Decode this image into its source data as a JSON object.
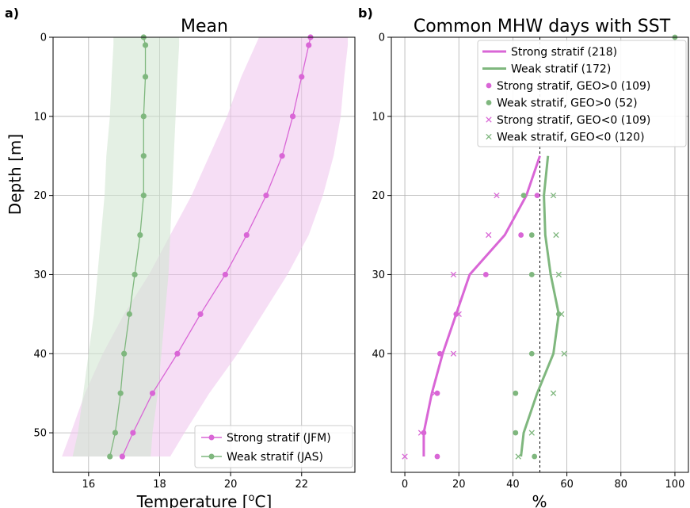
{
  "chart_data": [
    {
      "panel_label": "a)",
      "type": "line",
      "title": "Mean",
      "xlabel": "Temperature [°C]",
      "xlabel_main": "Temperature [",
      "xlabel_sup": "o",
      "xlabel_tail": "C]",
      "ylabel": "Depth [m]",
      "xlim": [
        15,
        23.5
      ],
      "ylim": [
        55,
        0
      ],
      "xticks": [
        16,
        18,
        20,
        22
      ],
      "yticks": [
        0,
        10,
        20,
        30,
        40,
        50
      ],
      "grid": true,
      "legend_position": "lower-right",
      "series": [
        {
          "name": "Strong stratif (JFM)",
          "color": "#d966d6",
          "depth": [
            0,
            1,
            5,
            10,
            15,
            20,
            25,
            30,
            35,
            40,
            45,
            50,
            53
          ],
          "mean": [
            22.25,
            22.2,
            22.0,
            21.75,
            21.45,
            21.0,
            20.45,
            19.85,
            19.15,
            18.5,
            17.8,
            17.25,
            16.95
          ],
          "lower": [
            20.8,
            20.7,
            20.3,
            19.9,
            19.4,
            18.9,
            18.3,
            17.7,
            17.0,
            16.4,
            15.9,
            15.5,
            15.25
          ],
          "upper": [
            23.3,
            23.3,
            23.2,
            23.1,
            22.9,
            22.6,
            22.2,
            21.6,
            20.9,
            20.2,
            19.4,
            18.7,
            18.3
          ],
          "band_color": "#f0c8ef"
        },
        {
          "name": "Weak stratif (JAS)",
          "color": "#7fb77e",
          "depth": [
            0,
            1,
            5,
            10,
            15,
            20,
            25,
            30,
            35,
            40,
            45,
            50,
            53
          ],
          "mean": [
            17.55,
            17.6,
            17.6,
            17.55,
            17.55,
            17.55,
            17.45,
            17.3,
            17.15,
            17.0,
            16.9,
            16.75,
            16.6
          ],
          "lower": [
            16.7,
            16.7,
            16.65,
            16.6,
            16.5,
            16.45,
            16.35,
            16.25,
            16.15,
            16.0,
            15.85,
            15.7,
            15.55
          ],
          "upper": [
            18.55,
            18.55,
            18.5,
            18.45,
            18.4,
            18.35,
            18.3,
            18.25,
            18.15,
            18.05,
            17.95,
            17.8,
            17.75
          ],
          "band_color": "#d2e6d2"
        }
      ]
    },
    {
      "panel_label": "b)",
      "type": "line",
      "title": "Common MHW days with SST",
      "xlabel": "%",
      "ylabel": "",
      "xlim": [
        -5,
        105
      ],
      "ylim": [
        55,
        0
      ],
      "xticks": [
        0,
        20,
        40,
        60,
        80,
        100
      ],
      "yticks": [
        0,
        10,
        20,
        30,
        40
      ],
      "grid": true,
      "reference_line_x": 50,
      "legend_position": "upper-right",
      "lines": [
        {
          "name": "Strong stratif (218)",
          "color": "#d966d6",
          "depth": [
            15,
            20,
            25,
            30,
            35,
            40,
            45,
            50,
            53
          ],
          "x": [
            50,
            45,
            37,
            24,
            19,
            14,
            10,
            7,
            7
          ]
        },
        {
          "name": "Weak stratif (172)",
          "color": "#7fb77e",
          "depth": [
            15,
            20,
            25,
            30,
            35,
            40,
            45,
            50,
            53
          ],
          "x": [
            53,
            51.5,
            52,
            54,
            57,
            55,
            49,
            44,
            43
          ]
        }
      ],
      "points": [
        {
          "name": "Strong stratif, GEO>0 (109)",
          "marker": "circle",
          "color": "#d966d6",
          "depth": [
            20,
            25,
            30,
            35,
            40,
            45,
            50,
            53
          ],
          "x": [
            49,
            43,
            30,
            19,
            13,
            12,
            7,
            12
          ]
        },
        {
          "name": "Weak stratif, GEO>0 (52)",
          "marker": "circle",
          "color": "#7fb77e",
          "depth": [
            0,
            20,
            25,
            30,
            35,
            40,
            45,
            50,
            53
          ],
          "x": [
            100,
            44,
            47,
            47,
            57,
            47,
            41,
            41,
            48
          ]
        },
        {
          "name": "Strong stratif, GEO<0 (109)",
          "marker": "x",
          "color": "#d966d6",
          "depth": [
            20,
            25,
            30,
            35,
            40,
            45,
            50,
            53
          ],
          "x": [
            34,
            31,
            18,
            20,
            18,
            11,
            6,
            0
          ]
        },
        {
          "name": "Weak stratif, GEO<0 (120)",
          "marker": "x",
          "color": "#7fb77e",
          "depth": [
            20,
            25,
            30,
            35,
            40,
            45,
            50,
            53
          ],
          "x": [
            55,
            56,
            57,
            58,
            59,
            55,
            47,
            42
          ]
        }
      ]
    }
  ]
}
